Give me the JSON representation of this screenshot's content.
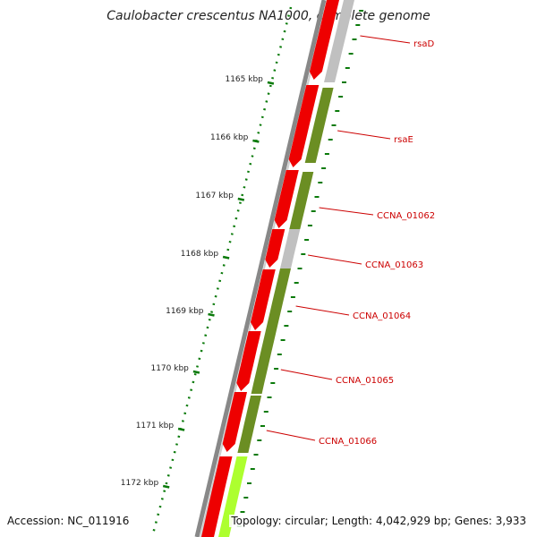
{
  "title": "Caulobacter crescentus NA1000, complete genome",
  "footer": {
    "accession": "Accession: NC_011916",
    "summary": "Topology: circular; Length: 4,042,929 bp; Genes: 3,933"
  },
  "ruler": {
    "unit": "kbp",
    "ticks": [
      "1165 kbp",
      "1166 kbp",
      "1167 kbp",
      "1168 kbp",
      "1169 kbp",
      "1170 kbp",
      "1171 kbp",
      "1172 kbp"
    ]
  },
  "genes": [
    "rsaD",
    "rsaE",
    "CCNA_01062",
    "CCNA_01063",
    "CCNA_01064",
    "CCNA_01065",
    "CCNA_01066"
  ],
  "colors": {
    "gene_red": "#ee0000",
    "cds_olive": "#6b8e23",
    "cds_gray": "#c0c0c0",
    "cds_lime": "#adff2f",
    "label_red": "#cc0000",
    "ruler_green": "#0a7a0a",
    "backbone": "#808080"
  }
}
